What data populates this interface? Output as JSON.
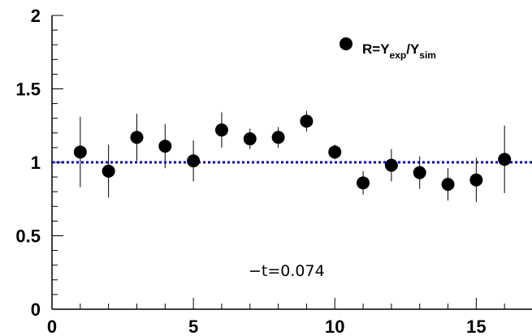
{
  "chart_data": {
    "type": "scatter",
    "title": "",
    "xlabel": "",
    "ylabel": "",
    "xlim": [
      0,
      17
    ],
    "ylim": [
      0,
      2
    ],
    "x_ticks": [
      0,
      5,
      10,
      15
    ],
    "y_ticks": [
      0,
      0.5,
      1,
      1.5,
      2
    ],
    "x_tick_labels": [
      "0",
      "5",
      "10",
      "15"
    ],
    "y_tick_labels": [
      "0",
      "0.5",
      "1",
      "1.5",
      "2"
    ],
    "grid": false,
    "legend_position": "top-right",
    "reference_line": {
      "y": 1,
      "style": "dotted",
      "color": "#0000cc"
    },
    "series": [
      {
        "legend_parts": [
          "R=Y",
          "exp",
          "/Y",
          "sim"
        ],
        "marker": "filled-circle",
        "color": "#000000",
        "x": [
          1,
          2,
          3,
          4,
          5,
          6,
          7,
          8,
          9,
          10,
          11,
          12,
          13,
          14,
          15,
          16
        ],
        "y": [
          1.07,
          0.94,
          1.17,
          1.11,
          1.01,
          1.22,
          1.16,
          1.17,
          1.28,
          1.07,
          0.86,
          0.98,
          0.93,
          0.85,
          0.88,
          1.02
        ],
        "yerr": [
          0.24,
          0.18,
          0.16,
          0.15,
          0.14,
          0.12,
          0.07,
          0.07,
          0.07,
          0.05,
          0.08,
          0.11,
          0.11,
          0.11,
          0.15,
          0.23
        ]
      }
    ],
    "annotations": [
      {
        "text": "−t=0.074"
      }
    ]
  }
}
